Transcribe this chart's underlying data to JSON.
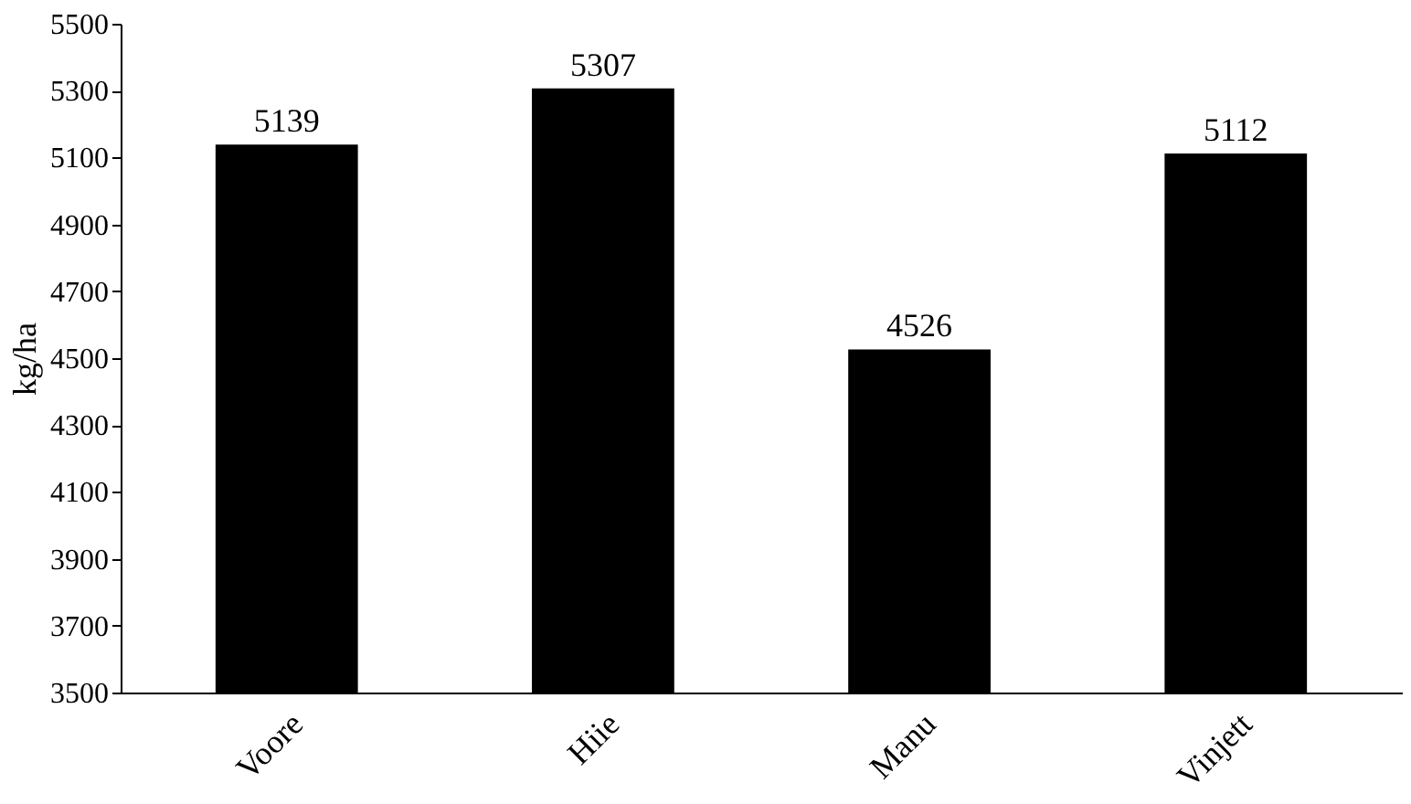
{
  "chart_data": {
    "type": "bar",
    "ylabel": "kg/ha",
    "categories": [
      "Voore",
      "Hiie",
      "Manu",
      "Vinjett"
    ],
    "values": [
      5139,
      5307,
      4526,
      5112
    ],
    "color": "#000000",
    "ylim": [
      3500,
      5500
    ],
    "yticks": [
      3500,
      3700,
      3900,
      4100,
      4300,
      4500,
      4700,
      4900,
      5100,
      5300,
      5500
    ],
    "grid": false,
    "data_labels": true
  }
}
